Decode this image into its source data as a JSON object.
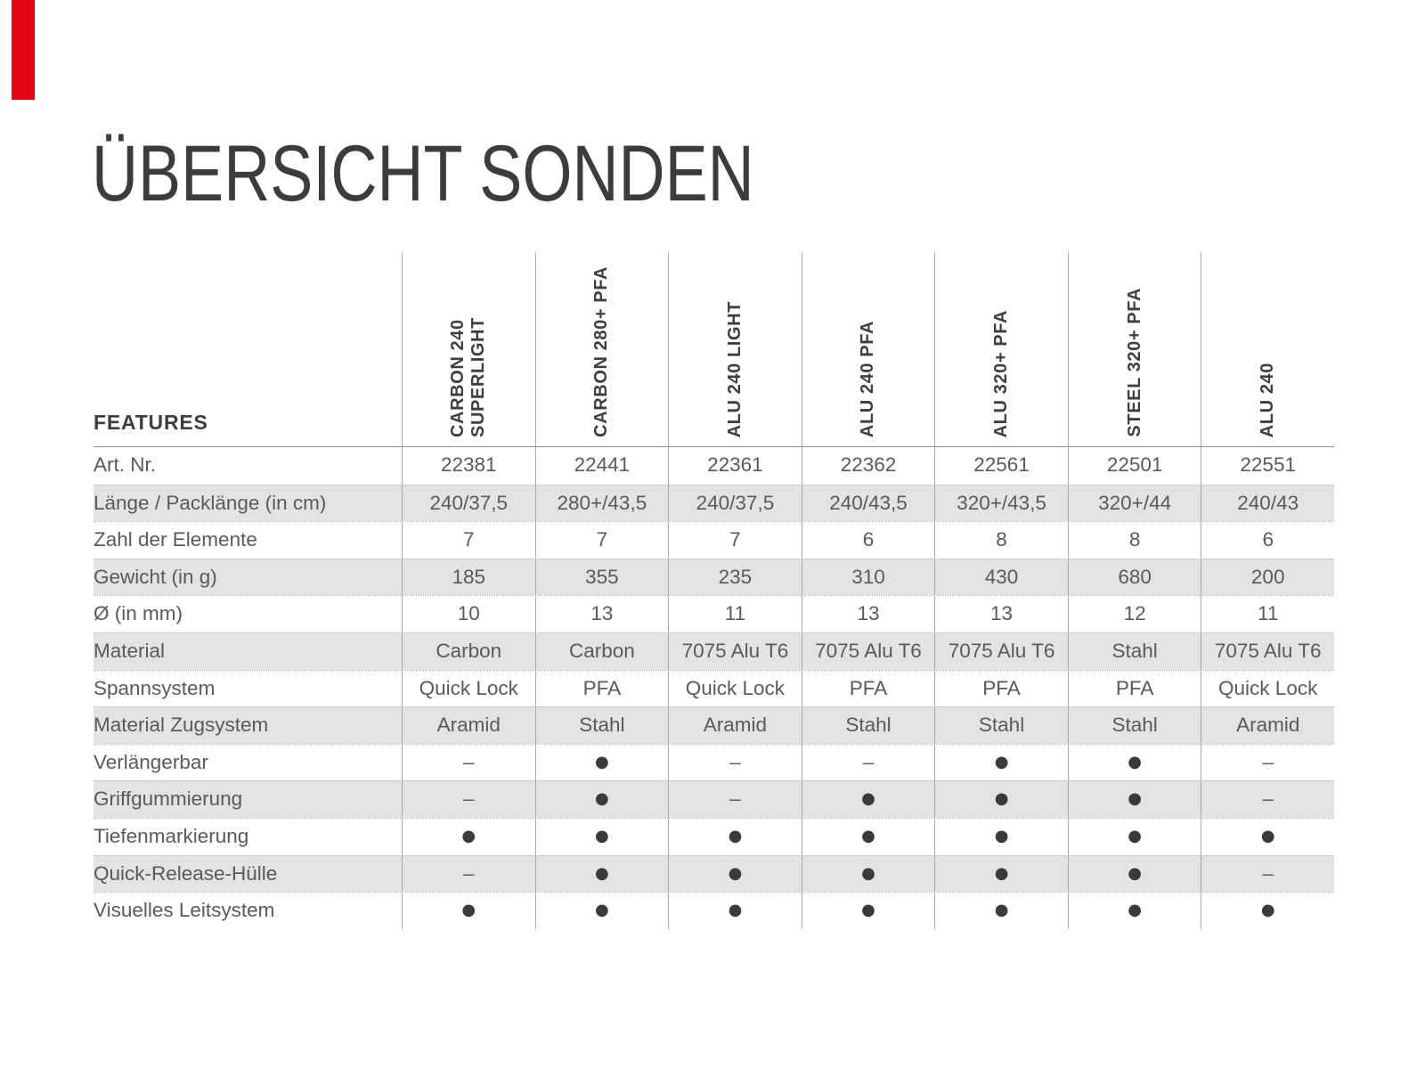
{
  "page": {
    "title": "ÜBERSICHT SONDEN",
    "accent_color": "#e30613"
  },
  "table": {
    "features_label": "FEATURES",
    "columns": [
      "CARBON 240 SUPERLIGHT",
      "CARBON 280+ PFA",
      "ALU 240 LIGHT",
      "ALU 240 PFA",
      "ALU 320+ PFA",
      "STEEL 320+ PFA",
      "ALU 240"
    ],
    "rows": [
      {
        "label": "Art. Nr.",
        "values": [
          "22381",
          "22441",
          "22361",
          "22362",
          "22561",
          "22501",
          "22551"
        ]
      },
      {
        "label": "Länge / Packlänge (in cm)",
        "values": [
          "240/37,5",
          "280+/43,5",
          "240/37,5",
          "240/43,5",
          "320+/43,5",
          "320+/44",
          "240/43"
        ]
      },
      {
        "label": "Zahl der Elemente",
        "values": [
          "7",
          "7",
          "7",
          "6",
          "8",
          "8",
          "6"
        ]
      },
      {
        "label": "Gewicht (in g)",
        "values": [
          "185",
          "355",
          "235",
          "310",
          "430",
          "680",
          "200"
        ]
      },
      {
        "label": "Ø (in mm)",
        "values": [
          "10",
          "13",
          "11",
          "13",
          "13",
          "12",
          "11"
        ]
      },
      {
        "label": "Material",
        "values": [
          "Carbon",
          "Carbon",
          "7075 Alu T6",
          "7075 Alu T6",
          "7075 Alu T6",
          "Stahl",
          "7075 Alu T6"
        ]
      },
      {
        "label": "Spannsystem",
        "values": [
          "Quick Lock",
          "PFA",
          "Quick Lock",
          "PFA",
          "PFA",
          "PFA",
          "Quick Lock"
        ]
      },
      {
        "label": "Material Zugsystem",
        "values": [
          "Aramid",
          "Stahl",
          "Aramid",
          "Stahl",
          "Stahl",
          "Stahl",
          "Aramid"
        ]
      },
      {
        "label": "Verlängerbar",
        "values": [
          "–",
          "●",
          "–",
          "–",
          "●",
          "●",
          "–"
        ]
      },
      {
        "label": "Griffgummierung",
        "values": [
          "–",
          "●",
          "–",
          "●",
          "●",
          "●",
          "–"
        ]
      },
      {
        "label": "Tiefenmarkierung",
        "values": [
          "●",
          "●",
          "●",
          "●",
          "●",
          "●",
          "●"
        ]
      },
      {
        "label": "Quick-Release-Hülle",
        "values": [
          "–",
          "●",
          "●",
          "●",
          "●",
          "●",
          "–"
        ]
      },
      {
        "label": "Visuelles Leitsystem",
        "values": [
          "●",
          "●",
          "●",
          "●",
          "●",
          "●",
          "●"
        ]
      }
    ]
  }
}
